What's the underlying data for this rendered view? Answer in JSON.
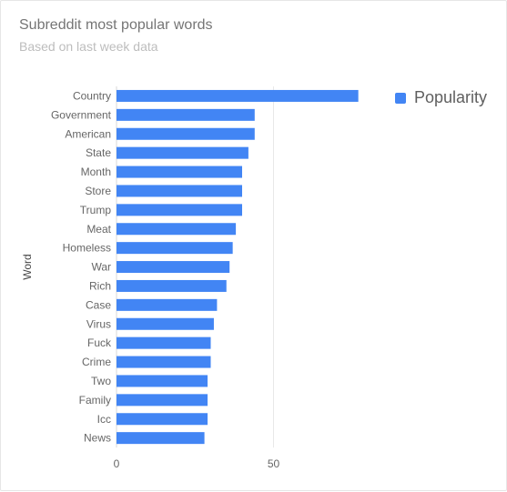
{
  "title": "Subreddit most popular words",
  "subtitle": "Based on last week data",
  "colors": {
    "bar": "#4285f4",
    "grid": "#e8e8e8",
    "axis": "#d8d8d8",
    "label": "#666666"
  },
  "chart_data": {
    "type": "bar",
    "orientation": "horizontal",
    "ylabel": "Word",
    "xlim": [
      0,
      78
    ],
    "xticks": [
      0,
      50
    ],
    "legend_position": "top-right",
    "categories": [
      "Country",
      "Government",
      "American",
      "State",
      "Month",
      "Store",
      "Trump",
      "Meat",
      "Homeless",
      "War",
      "Rich",
      "Case",
      "Virus",
      "Fuck",
      "Crime",
      "Two",
      "Family",
      "Icc",
      "News"
    ],
    "series": [
      {
        "name": "Popularity",
        "values": [
          77,
          44,
          44,
          42,
          40,
          40,
          40,
          38,
          37,
          36,
          35,
          32,
          31,
          30,
          30,
          29,
          29,
          29,
          28
        ]
      }
    ]
  }
}
